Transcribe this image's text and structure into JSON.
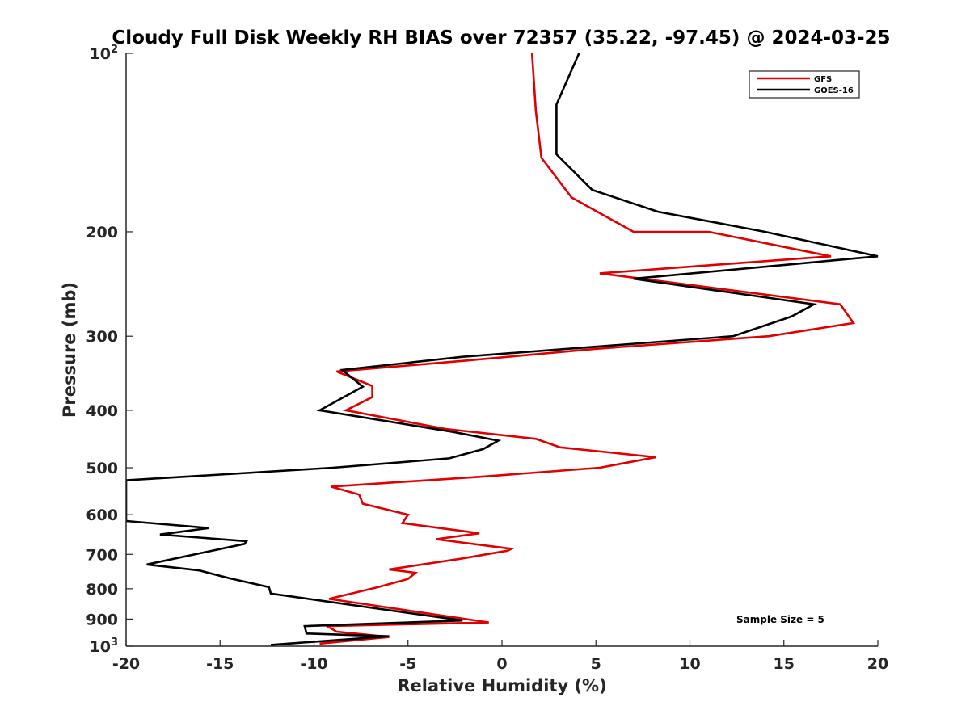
{
  "chart_data": {
    "type": "line",
    "title": "Cloudy Full Disk Weekly RH BIAS over 72357 (35.22, -97.45) @ 2024-03-25",
    "xlabel": "Relative Humidity (%)",
    "ylabel": "Pressure (mb)",
    "xlim": [
      -20,
      20
    ],
    "ylim": [
      100,
      1000
    ],
    "y_scale": "log",
    "y_reversed": true,
    "grid": false,
    "legend_position": "top-right",
    "x_ticks": [
      "-20",
      "-15",
      "-10",
      "-5",
      "0",
      "5",
      "10",
      "15",
      "20"
    ],
    "y_ticks": [
      {
        "value": 100,
        "label": "10",
        "sup": "2"
      },
      {
        "value": 200,
        "label": "200",
        "sup": ""
      },
      {
        "value": 300,
        "label": "300",
        "sup": ""
      },
      {
        "value": 400,
        "label": "400",
        "sup": ""
      },
      {
        "value": 500,
        "label": "500",
        "sup": ""
      },
      {
        "value": 600,
        "label": "600",
        "sup": ""
      },
      {
        "value": 700,
        "label": "700",
        "sup": ""
      },
      {
        "value": 800,
        "label": "800",
        "sup": ""
      },
      {
        "value": 900,
        "label": "900",
        "sup": ""
      },
      {
        "value": 1000,
        "label": "10",
        "sup": "3"
      }
    ],
    "annotation": "Sample Size = 5",
    "series": [
      {
        "name": "GFS",
        "color": "#e00000",
        "points": [
          [
            1.6,
            100
          ],
          [
            1.8,
            125
          ],
          [
            2.1,
            150
          ],
          [
            3.7,
            175
          ],
          [
            7,
            200
          ],
          [
            11,
            200
          ],
          [
            17.5,
            220
          ],
          [
            5.2,
            235
          ],
          [
            18,
            265
          ],
          [
            18.7,
            285
          ],
          [
            14.2,
            300
          ],
          [
            5,
            315
          ],
          [
            -2,
            330
          ],
          [
            -8.8,
            344
          ],
          [
            -6.9,
            364
          ],
          [
            -6.9,
            380
          ],
          [
            -8.3,
            400
          ],
          [
            -3,
            430
          ],
          [
            1.8,
            447
          ],
          [
            3.1,
            462
          ],
          [
            8.2,
            480
          ],
          [
            5.2,
            500
          ],
          [
            -1.2,
            518
          ],
          [
            -9.1,
            538
          ],
          [
            -7.6,
            555
          ],
          [
            -7.4,
            575
          ],
          [
            -5,
            600
          ],
          [
            -5.3,
            620
          ],
          [
            -1.2,
            645
          ],
          [
            -3.5,
            660
          ],
          [
            0.5,
            685
          ],
          [
            0.3,
            690
          ],
          [
            -2.2,
            712
          ],
          [
            -6,
            742
          ],
          [
            -4.6,
            752
          ],
          [
            -5,
            770
          ],
          [
            -6.6,
            795
          ],
          [
            -9.2,
            832
          ],
          [
            -0.7,
            912
          ],
          [
            -9.3,
            925
          ],
          [
            -8.8,
            945
          ],
          [
            -6,
            965
          ],
          [
            -9.7,
            990
          ]
        ]
      },
      {
        "name": "GOES-16",
        "color": "#000000",
        "points": [
          [
            4.1,
            100
          ],
          [
            2.9,
            122
          ],
          [
            2.9,
            148
          ],
          [
            4.8,
            170
          ],
          [
            8.3,
            185
          ],
          [
            14,
            200
          ],
          [
            20,
            220
          ],
          [
            7,
            240
          ],
          [
            16.6,
            265
          ],
          [
            15.4,
            278
          ],
          [
            12.3,
            300
          ],
          [
            -2.1,
            325
          ],
          [
            -8.5,
            342
          ],
          [
            -7.4,
            365
          ],
          [
            -9.7,
            400
          ],
          [
            -2.6,
            435
          ],
          [
            -0.2,
            450
          ],
          [
            -1,
            465
          ],
          [
            -2.8,
            482
          ],
          [
            -9,
            500
          ],
          [
            -20,
            525
          ],
          [
            -20,
            615
          ],
          [
            -15.6,
            632
          ],
          [
            -18.2,
            648
          ],
          [
            -13.6,
            665
          ],
          [
            -13.7,
            672
          ],
          [
            -18.9,
            728
          ],
          [
            -16.1,
            745
          ],
          [
            -14.5,
            768
          ],
          [
            -12.4,
            795
          ],
          [
            -12.3,
            815
          ],
          [
            -2.1,
            905
          ],
          [
            -10.5,
            925
          ],
          [
            -10.4,
            952
          ],
          [
            -6,
            962
          ],
          [
            -12.3,
            995
          ]
        ]
      }
    ]
  }
}
